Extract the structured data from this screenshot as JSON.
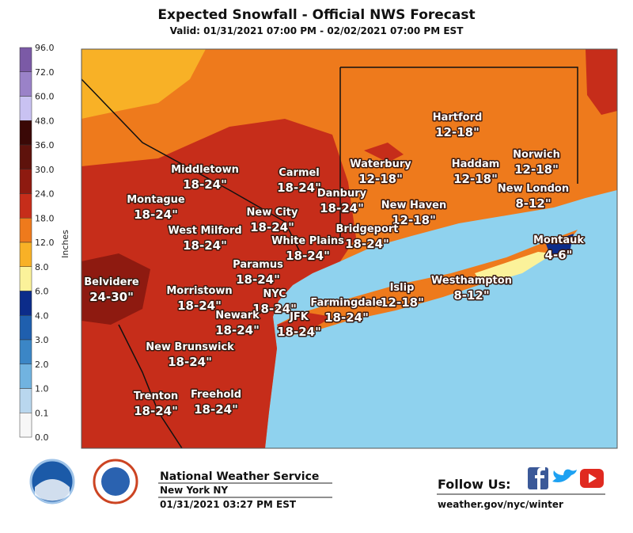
{
  "header": {
    "title": "Expected Snowfall - Official NWS Forecast",
    "subtitle": "Valid: 01/31/2021 07:00 PM - 02/02/2021 07:00 PM EST"
  },
  "legend": {
    "title": "Inches",
    "labels": [
      "96.0",
      "72.0",
      "60.0",
      "48.0",
      "36.0",
      "30.0",
      "24.0",
      "18.0",
      "12.0",
      "8.0",
      "6.0",
      "4.0",
      "3.0",
      "2.0",
      "1.0",
      "0.1",
      "0.0"
    ],
    "colors": [
      "#7b5aa6",
      "#9a82c8",
      "#c9c2f2",
      "#3a0806",
      "#5e120c",
      "#8e1a10",
      "#c62d1a",
      "#ee7a1c",
      "#f8b126",
      "#fbf29a",
      "#0c2c8a",
      "#1f5fae",
      "#3b86c6",
      "#71b3e0",
      "#b9d7ee",
      "#f7f7f7"
    ]
  },
  "cities": [
    {
      "name": "Middletown",
      "amount": "18-24\""
    },
    {
      "name": "Carmel",
      "amount": "18-24\""
    },
    {
      "name": "Hartford",
      "amount": "12-18\""
    },
    {
      "name": "Waterbury",
      "amount": "12-18\""
    },
    {
      "name": "Haddam",
      "amount": "12-18\""
    },
    {
      "name": "Norwich",
      "amount": "12-18\""
    },
    {
      "name": "Montague",
      "amount": "18-24\""
    },
    {
      "name": "Danbury",
      "amount": "18-24\""
    },
    {
      "name": "New Haven",
      "amount": "12-18\""
    },
    {
      "name": "New London",
      "amount": "8-12\""
    },
    {
      "name": "New City",
      "amount": "18-24\""
    },
    {
      "name": "West Milford",
      "amount": "18-24\""
    },
    {
      "name": "Bridgeport",
      "amount": "18-24\""
    },
    {
      "name": "White Plains",
      "amount": "18-24\""
    },
    {
      "name": "Montauk",
      "amount": "4-6\""
    },
    {
      "name": "Paramus",
      "amount": "18-24\""
    },
    {
      "name": "Belvidere",
      "amount": "24-30\""
    },
    {
      "name": "Morristown",
      "amount": "18-24\""
    },
    {
      "name": "NYC",
      "amount": "18-24\""
    },
    {
      "name": "Islip",
      "amount": "12-18\""
    },
    {
      "name": "Westhampton",
      "amount": "8-12\""
    },
    {
      "name": "Farmingdale",
      "amount": "18-24\""
    },
    {
      "name": "Newark",
      "amount": "18-24\""
    },
    {
      "name": "JFK",
      "amount": "18-24\""
    },
    {
      "name": "New Brunswick",
      "amount": "18-24\""
    },
    {
      "name": "Trenton",
      "amount": "18-24\""
    },
    {
      "name": "Freehold",
      "amount": "18-24\""
    }
  ],
  "footer": {
    "agency": "National Weather Service",
    "office": "New York NY",
    "issued": "01/31/2021 03:27 PM EST",
    "follow": "Follow Us:",
    "url": "weather.gov/nyc/winter"
  }
}
